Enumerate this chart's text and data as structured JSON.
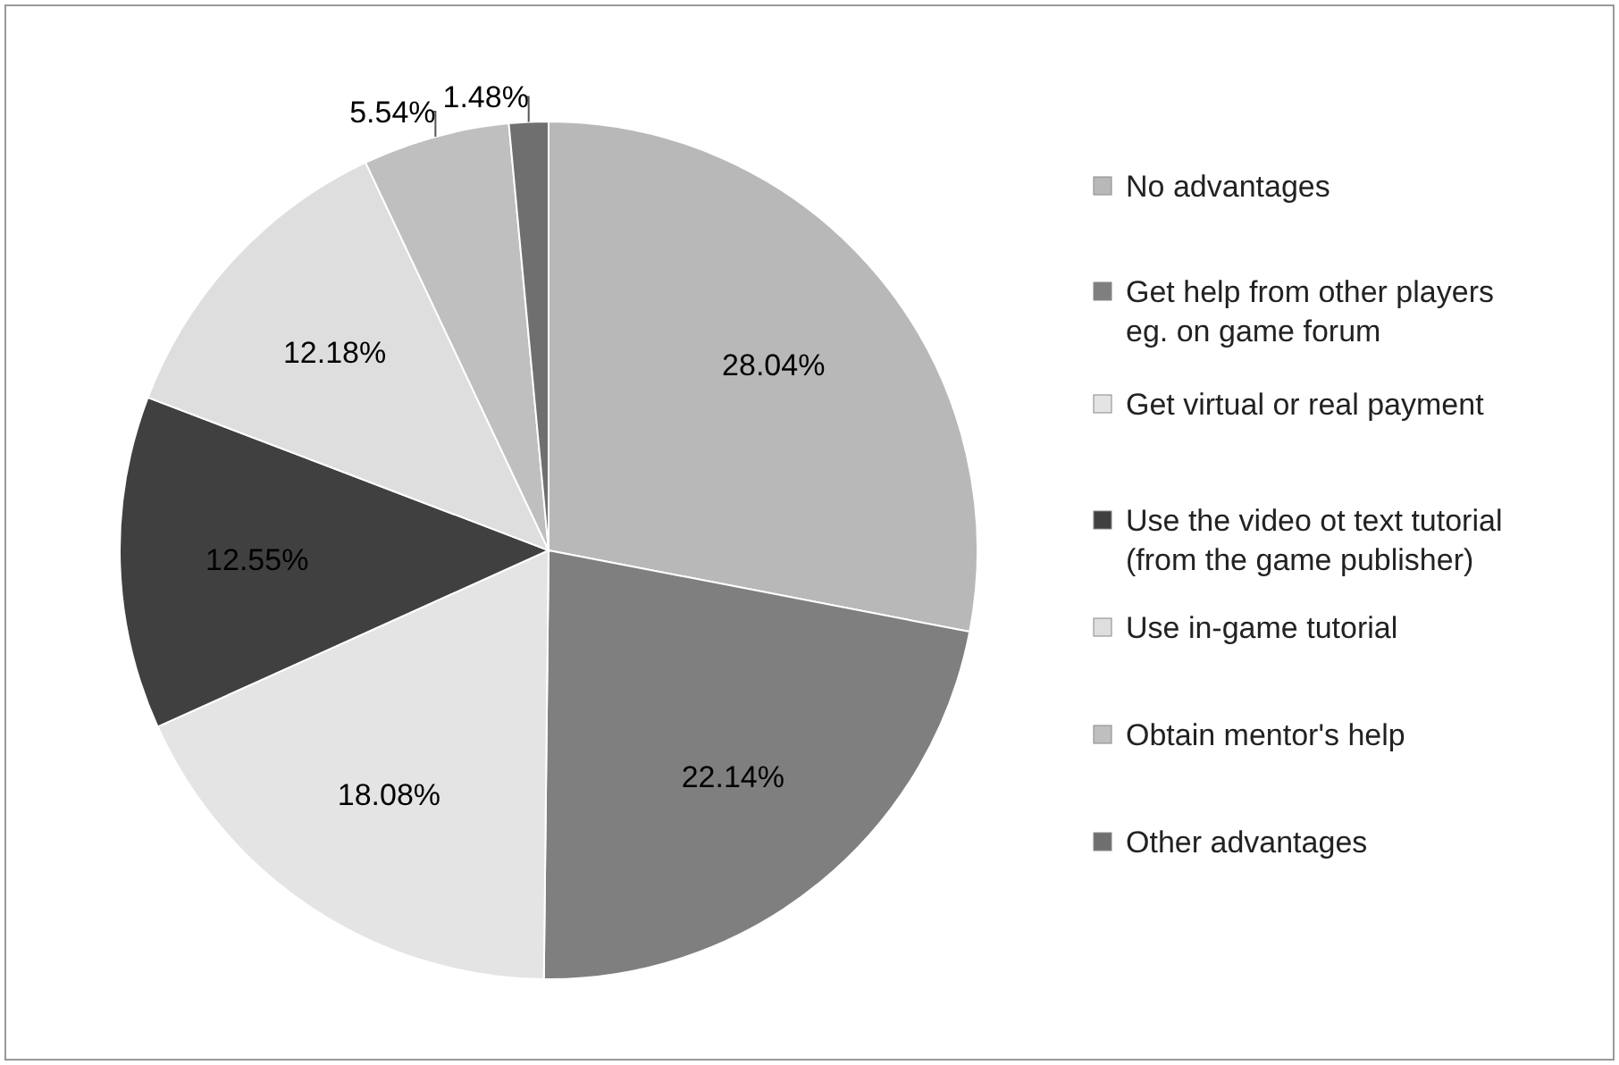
{
  "chart_data": {
    "type": "pie",
    "categories": [
      "No advantages",
      "Get help from other players eg. on game forum",
      "Get virtual or real payment",
      "Use the video ot text tutorial (from the game publisher)",
      "Use in-game tutorial",
      "Obtain mentor's help",
      "Other advantages"
    ],
    "values": [
      28.04,
      22.14,
      18.08,
      12.55,
      12.18,
      5.54,
      1.48
    ],
    "value_labels": [
      "28.04%",
      "22.14%",
      "18.08%",
      "12.55%",
      "12.18%",
      "5.54%",
      "1.48%"
    ],
    "colors": [
      "#b8b8b8",
      "#7f7f7f",
      "#e4e4e4",
      "#404040",
      "#dedede",
      "#bfbfbf",
      "#6f6f6f"
    ],
    "legend": "right"
  }
}
